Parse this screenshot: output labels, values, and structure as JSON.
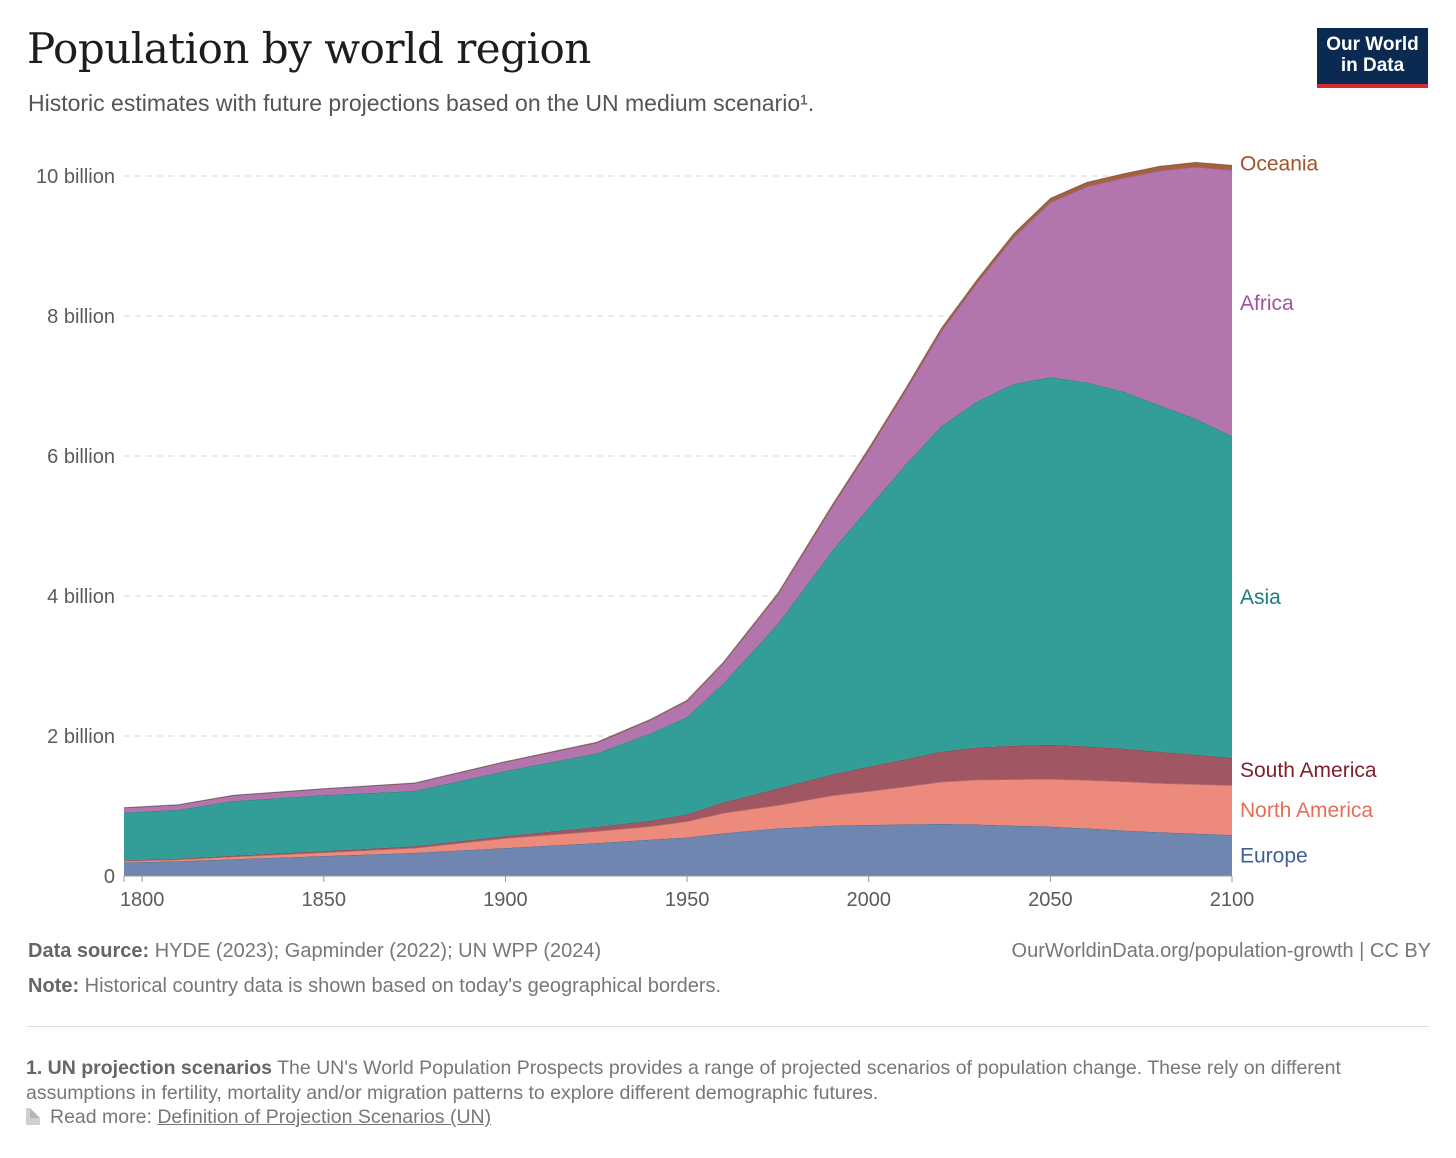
{
  "header": {
    "title": "Population by world region",
    "subtitle": "Historic estimates with future projections based on the UN medium scenario¹.",
    "logo_line1": "Our World",
    "logo_line2": "in Data"
  },
  "footer": {
    "source_label": "Data source:",
    "source_text": " HYDE (2023); Gapminder (2022); UN WPP (2024)",
    "license": "OurWorldinData.org/population-growth | CC BY",
    "note_label": "Note:",
    "note_text": " Historical country data is shown based on today's geographical borders.",
    "footnote_label": "1. UN projection scenarios",
    "footnote_text": " The UN's World Population Prospects provides a range of projected scenarios of population change. These rely on different assumptions in fertility, mortality and/or migration patterns to explore different demographic futures.",
    "readmore_label": "Read more: ",
    "readmore_link": "Definition of Projection Scenarios (UN)"
  },
  "chart_data": {
    "type": "area",
    "stacked": true,
    "title": "Population by world region",
    "subtitle": "Historic estimates with future projections based on the UN medium scenario¹.",
    "xlabel": "",
    "ylabel": "",
    "xlim": [
      1795,
      2100
    ],
    "ylim": [
      0,
      10000000000
    ],
    "x_ticks": [
      1800,
      1850,
      1900,
      1950,
      2000,
      2050,
      2100
    ],
    "x_tick_labels": [
      "1800",
      "1850",
      "1900",
      "1950",
      "2000",
      "2050",
      "2100"
    ],
    "y_ticks": [
      0,
      2000000000,
      4000000000,
      6000000000,
      8000000000,
      10000000000
    ],
    "y_tick_labels": [
      "0",
      "2 billion",
      "4 billion",
      "6 billion",
      "8 billion",
      "10 billion"
    ],
    "grid": "horizontal dashed",
    "legend": "labels at right end of series",
    "x": [
      1795,
      1810,
      1825,
      1850,
      1875,
      1900,
      1925,
      1940,
      1950,
      1960,
      1975,
      1990,
      2000,
      2010,
      2020,
      2030,
      2040,
      2050,
      2060,
      2070,
      2080,
      2090,
      2100
    ],
    "series": [
      {
        "name": "Europe",
        "color": "#6f87b0",
        "values": [
          195000000,
          210000000,
          240000000,
          285000000,
          330000000,
          400000000,
          470000000,
          520000000,
          550000000,
          610000000,
          680000000,
          720000000,
          730000000,
          735000000,
          745000000,
          735000000,
          720000000,
          705000000,
          680000000,
          650000000,
          625000000,
          605000000,
          585000000
        ]
      },
      {
        "name": "North America",
        "color": "#ec8a7c",
        "values": [
          20000000,
          25000000,
          35000000,
          50000000,
          70000000,
          140000000,
          170000000,
          190000000,
          230000000,
          290000000,
          330000000,
          430000000,
          480000000,
          540000000,
          600000000,
          640000000,
          660000000,
          680000000,
          690000000,
          700000000,
          700000000,
          705000000,
          710000000
        ]
      },
      {
        "name": "South America",
        "color": "#a05763",
        "values": [
          10000000,
          12000000,
          15000000,
          20000000,
          25000000,
          30000000,
          60000000,
          80000000,
          100000000,
          150000000,
          240000000,
          300000000,
          350000000,
          390000000,
          430000000,
          460000000,
          480000000,
          490000000,
          480000000,
          470000000,
          450000000,
          420000000,
          390000000
        ]
      },
      {
        "name": "Asia",
        "color": "#339e97",
        "values": [
          680000000,
          700000000,
          780000000,
          800000000,
          790000000,
          930000000,
          1050000000,
          1250000000,
          1390000000,
          1700000000,
          2350000000,
          3200000000,
          3700000000,
          4200000000,
          4650000000,
          4950000000,
          5170000000,
          5250000000,
          5200000000,
          5100000000,
          4950000000,
          4800000000,
          4600000000
        ]
      },
      {
        "name": "Africa",
        "color": "#b375ae",
        "values": [
          70000000,
          70000000,
          80000000,
          90000000,
          110000000,
          130000000,
          150000000,
          190000000,
          230000000,
          290000000,
          420000000,
          630000000,
          820000000,
          1050000000,
          1360000000,
          1700000000,
          2100000000,
          2500000000,
          2800000000,
          3050000000,
          3350000000,
          3600000000,
          3800000000
        ]
      },
      {
        "name": "Oceania",
        "color": "#a5603c",
        "values": [
          2000000,
          2000000,
          2500000,
          3000000,
          5000000,
          6000000,
          10000000,
          11000000,
          13000000,
          16000000,
          21000000,
          27000000,
          31000000,
          37000000,
          43000000,
          48000000,
          53000000,
          57000000,
          60000000,
          62000000,
          65000000,
          66000000,
          68000000
        ]
      }
    ],
    "series_labels": [
      "Oceania",
      "Africa",
      "Asia",
      "South America",
      "North America",
      "Europe"
    ],
    "label_colors": [
      "#a2532b",
      "#a2539b",
      "#188078",
      "#80202c",
      "#e56e5a",
      "#3d5f9e"
    ]
  }
}
